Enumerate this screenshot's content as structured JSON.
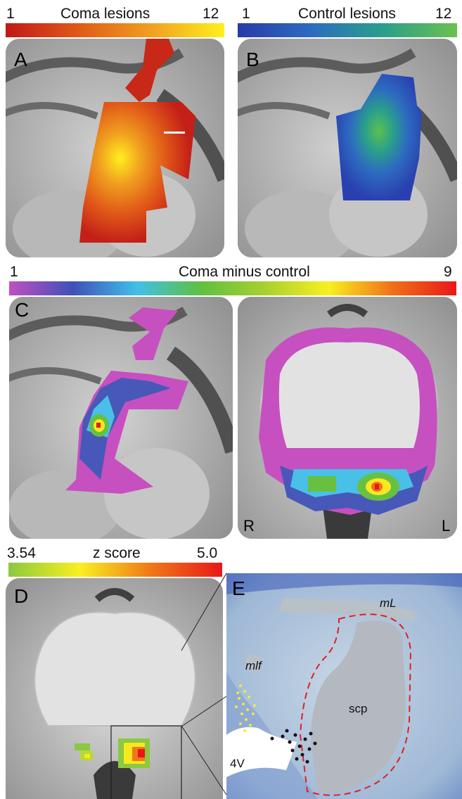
{
  "panel_a": {
    "letter": "A",
    "scale": {
      "min": "1",
      "max": "12",
      "title": "Coma lesions",
      "colors": [
        "#c01818",
        "#e05a18",
        "#f0a020",
        "#fff01e"
      ]
    }
  },
  "panel_b": {
    "letter": "B",
    "scale": {
      "min": "1",
      "max": "12",
      "title": "Control lesions",
      "colors": [
        "#2a3aa8",
        "#2c6cc0",
        "#2aa08a",
        "#6cc050"
      ]
    }
  },
  "panel_c": {
    "letter": "C",
    "scale": {
      "min": "1",
      "max": "9",
      "title": "Coma minus control",
      "colors": [
        "#c050c0",
        "#4050b8",
        "#40c0e8",
        "#60c040",
        "#a8d030",
        "#f8f020",
        "#f07018",
        "#e81818"
      ]
    },
    "right_label": "R",
    "left_label": "L"
  },
  "panel_d": {
    "letter": "D",
    "scale": {
      "min": "3.54",
      "max": "5.0",
      "title": "z score",
      "colors": [
        "#8cc840",
        "#f8f020",
        "#f07818",
        "#e81818"
      ]
    }
  },
  "panel_e": {
    "letter": "E",
    "labels": {
      "ml": "mL",
      "mlf": "mlf",
      "scp": "scp",
      "v4": "4V"
    }
  }
}
